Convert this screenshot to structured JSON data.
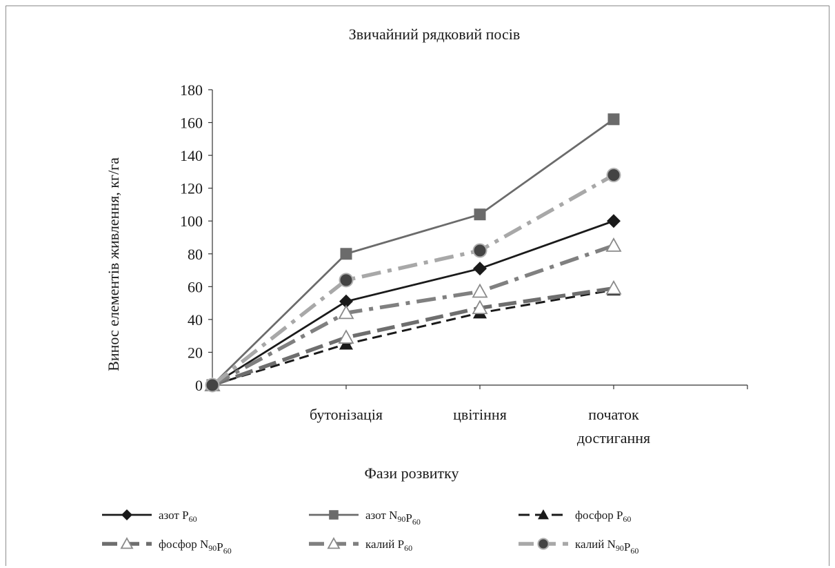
{
  "chart_data": {
    "type": "line",
    "title": "Звичайний рядковий посів",
    "xlabel": "Фази розвитку",
    "ylabel": "Винос елементів живлення, кг/га",
    "categories": [
      "",
      "бутонізація",
      "цвітіння",
      "початок\nдостигання"
    ],
    "ylim": [
      0,
      180
    ],
    "yticks": [
      0,
      20,
      40,
      60,
      80,
      100,
      120,
      140,
      160,
      180
    ],
    "grid": false,
    "legend_position": "bottom",
    "series": [
      {
        "name": "азот P₆₀",
        "label_main": "азот P",
        "label_sub": "60",
        "values": [
          0,
          51,
          71,
          100
        ],
        "color": "#1a1a1a",
        "dash": "solid",
        "marker": "diamond"
      },
      {
        "name": "азот N₉₀P₆₀",
        "label_main": "азот N",
        "label_sub": "90",
        "label_main2": "P",
        "label_sub2": "60",
        "values": [
          0,
          80,
          104,
          162
        ],
        "color": "#6b6b6b",
        "dash": "solid",
        "marker": "square"
      },
      {
        "name": "фосфор P₆₀",
        "label_main": "фосфор P",
        "label_sub": "60",
        "values": [
          0,
          25,
          44,
          58
        ],
        "color": "#1a1a1a",
        "dash": "dash",
        "marker": "triangle-filled"
      },
      {
        "name": "фосфор N₉₀P₆₀",
        "label_main": "фосфор N",
        "label_sub": "90",
        "label_main2": "P",
        "label_sub2": "60",
        "values": [
          0,
          29,
          47,
          59
        ],
        "color": "#6e6e6e",
        "dash": "longdash",
        "marker": "triangle-open"
      },
      {
        "name": "калий P₆₀",
        "label_main": "калий P",
        "label_sub": "60",
        "values": [
          0,
          44,
          57,
          85
        ],
        "color": "#808080",
        "dash": "dashdot",
        "marker": "triangle-open"
      },
      {
        "name": "калий N₉₀P₆₀",
        "label_main": "калий N",
        "label_sub": "90",
        "label_main2": "P",
        "label_sub2": "60",
        "values": [
          0,
          64,
          82,
          128
        ],
        "color": "#a8a8a8",
        "dash": "dashdot",
        "marker": "circle"
      }
    ]
  }
}
